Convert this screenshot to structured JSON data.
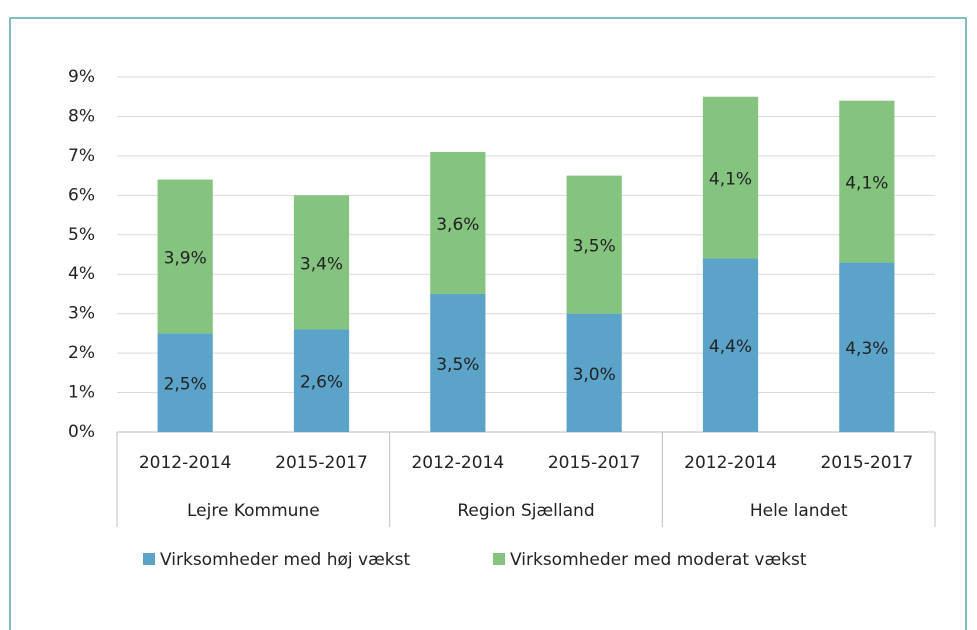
{
  "chart_data": {
    "type": "stacked_bar",
    "categories": [
      "2012-2014",
      "2015-2017",
      "2012-2014",
      "2015-2017",
      "2012-2014",
      "2015-2017"
    ],
    "groups": [
      "Lejre Kommune",
      "Region Sjælland",
      "Hele landet"
    ],
    "series": [
      {
        "name": "Virksomheder med høj vækst",
        "color": "#5ba3c9",
        "values": [
          2.5,
          2.6,
          3.5,
          3.0,
          4.4,
          4.3
        ],
        "value_labels": [
          "2,5%",
          "2,6%",
          "3,5%",
          "3,0%",
          "4,4%",
          "4,3%"
        ]
      },
      {
        "name": "Virksomheder med moderat vækst",
        "color": "#84c47f",
        "values": [
          3.9,
          3.4,
          3.6,
          3.5,
          4.1,
          4.1
        ],
        "value_labels": [
          "3,9%",
          "3,4%",
          "3,6%",
          "3,5%",
          "4,1%",
          "4,1%"
        ]
      }
    ],
    "ylim": [
      0,
      9
    ],
    "yticks": [
      {
        "value": 0,
        "label": "0%"
      },
      {
        "value": 1,
        "label": "1%"
      },
      {
        "value": 2,
        "label": "2%"
      },
      {
        "value": 3,
        "label": "3%"
      },
      {
        "value": 4,
        "label": "4%"
      },
      {
        "value": 5,
        "label": "5%"
      },
      {
        "value": 6,
        "label": "6%"
      },
      {
        "value": 7,
        "label": "7%"
      },
      {
        "value": 8,
        "label": "8%"
      },
      {
        "value": 9,
        "label": "9%"
      }
    ],
    "grid": true,
    "legend": "bottom"
  }
}
